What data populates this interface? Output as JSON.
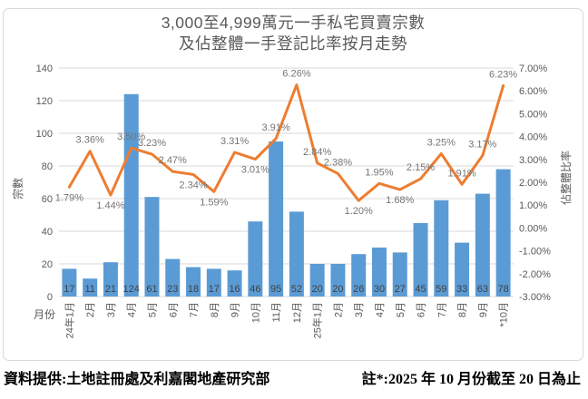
{
  "title": {
    "line1": "3,000至4,999萬元一手私宅買賣宗數",
    "line2": "及佔整體一手登記比率按月走勢"
  },
  "footer": {
    "source": "資料提供:土地註冊處及利嘉閣地產研究部",
    "note": "註*:2025 年 10 月份截至 20 日為止"
  },
  "colors": {
    "bar": "#5B9BD5",
    "line": "#ED7D31",
    "grid": "#D9D9D9",
    "tick_text": "#595959",
    "data_label": "#757575",
    "bar_label": "#404040",
    "title_text": "#595959",
    "border": "#D9D9D9",
    "footer_text": "#000000"
  },
  "chart_data": {
    "type": "combo-bar-line",
    "title": "3,000至4,999萬元一手私宅買賣宗數 及佔整體一手登記比率按月走勢",
    "legend_position": "none",
    "grid": true,
    "categories": [
      "24年1月",
      "2月",
      "3月",
      "4月",
      "5月",
      "6月",
      "7月",
      "8月",
      "9月",
      "10月",
      "11月",
      "12月",
      "25年1月",
      "2月",
      "3月",
      "4月",
      "5月",
      "6月",
      "7月",
      "8月",
      "9月",
      "*10月"
    ],
    "series": [
      {
        "name": "宗數",
        "type": "bar",
        "axis": "left",
        "values": [
          17,
          11,
          21,
          124,
          61,
          23,
          18,
          17,
          16,
          46,
          95,
          52,
          20,
          20,
          26,
          30,
          27,
          45,
          59,
          33,
          63,
          78
        ],
        "data_labels": [
          "17",
          "11",
          "21",
          "124",
          "61",
          "23",
          "18",
          "17",
          "16",
          "46",
          "95",
          "52",
          "20",
          "20",
          "26",
          "30",
          "27",
          "45",
          "59",
          "33",
          "63",
          "78"
        ]
      },
      {
        "name": "佔整體比率",
        "type": "line",
        "axis": "right",
        "values": [
          1.79,
          3.36,
          1.44,
          3.5,
          3.23,
          2.47,
          2.34,
          1.59,
          3.31,
          3.01,
          3.91,
          6.26,
          2.84,
          2.38,
          1.2,
          1.95,
          1.68,
          2.15,
          3.25,
          1.91,
          3.17,
          6.23
        ],
        "data_labels": [
          "1.79%",
          "3.36%",
          "1.44%",
          "3.50%",
          "3.23%",
          "2.47%",
          "2.34%",
          "1.59%",
          "3.31%",
          "3.01%",
          "3.91%",
          "6.26%",
          "2.84%",
          "2.38%",
          "1.20%",
          "1.95%",
          "1.68%",
          "2.15%",
          "3.25%",
          "1.91%",
          "3.17%",
          "6.23%"
        ],
        "label_sides": [
          "below",
          "above",
          "below",
          "above",
          "above",
          "above",
          "below",
          "below",
          "above",
          "below",
          "above",
          "above",
          "above",
          "above",
          "below",
          "above",
          "below",
          "above",
          "above",
          "above",
          "above",
          "above"
        ]
      }
    ],
    "x_axis": {
      "title": "月份"
    },
    "left_axis": {
      "title": "宗數",
      "min": 0,
      "max": 140,
      "tick_values": [
        0,
        20,
        40,
        60,
        80,
        100,
        120,
        140
      ],
      "tick_labels": [
        "0",
        "20",
        "40",
        "60",
        "80",
        "100",
        "120",
        "140"
      ]
    },
    "right_axis": {
      "title": "佔整體比率",
      "min": -3,
      "max": 7,
      "tick_values": [
        -3,
        -2,
        -1,
        0,
        1,
        2,
        3,
        4,
        5,
        6,
        7
      ],
      "tick_labels": [
        "-3.00%",
        "-2.00%",
        "-1.00%",
        "0.00%",
        "1.00%",
        "2.00%",
        "3.00%",
        "4.00%",
        "5.00%",
        "6.00%",
        "7.00%"
      ]
    }
  }
}
